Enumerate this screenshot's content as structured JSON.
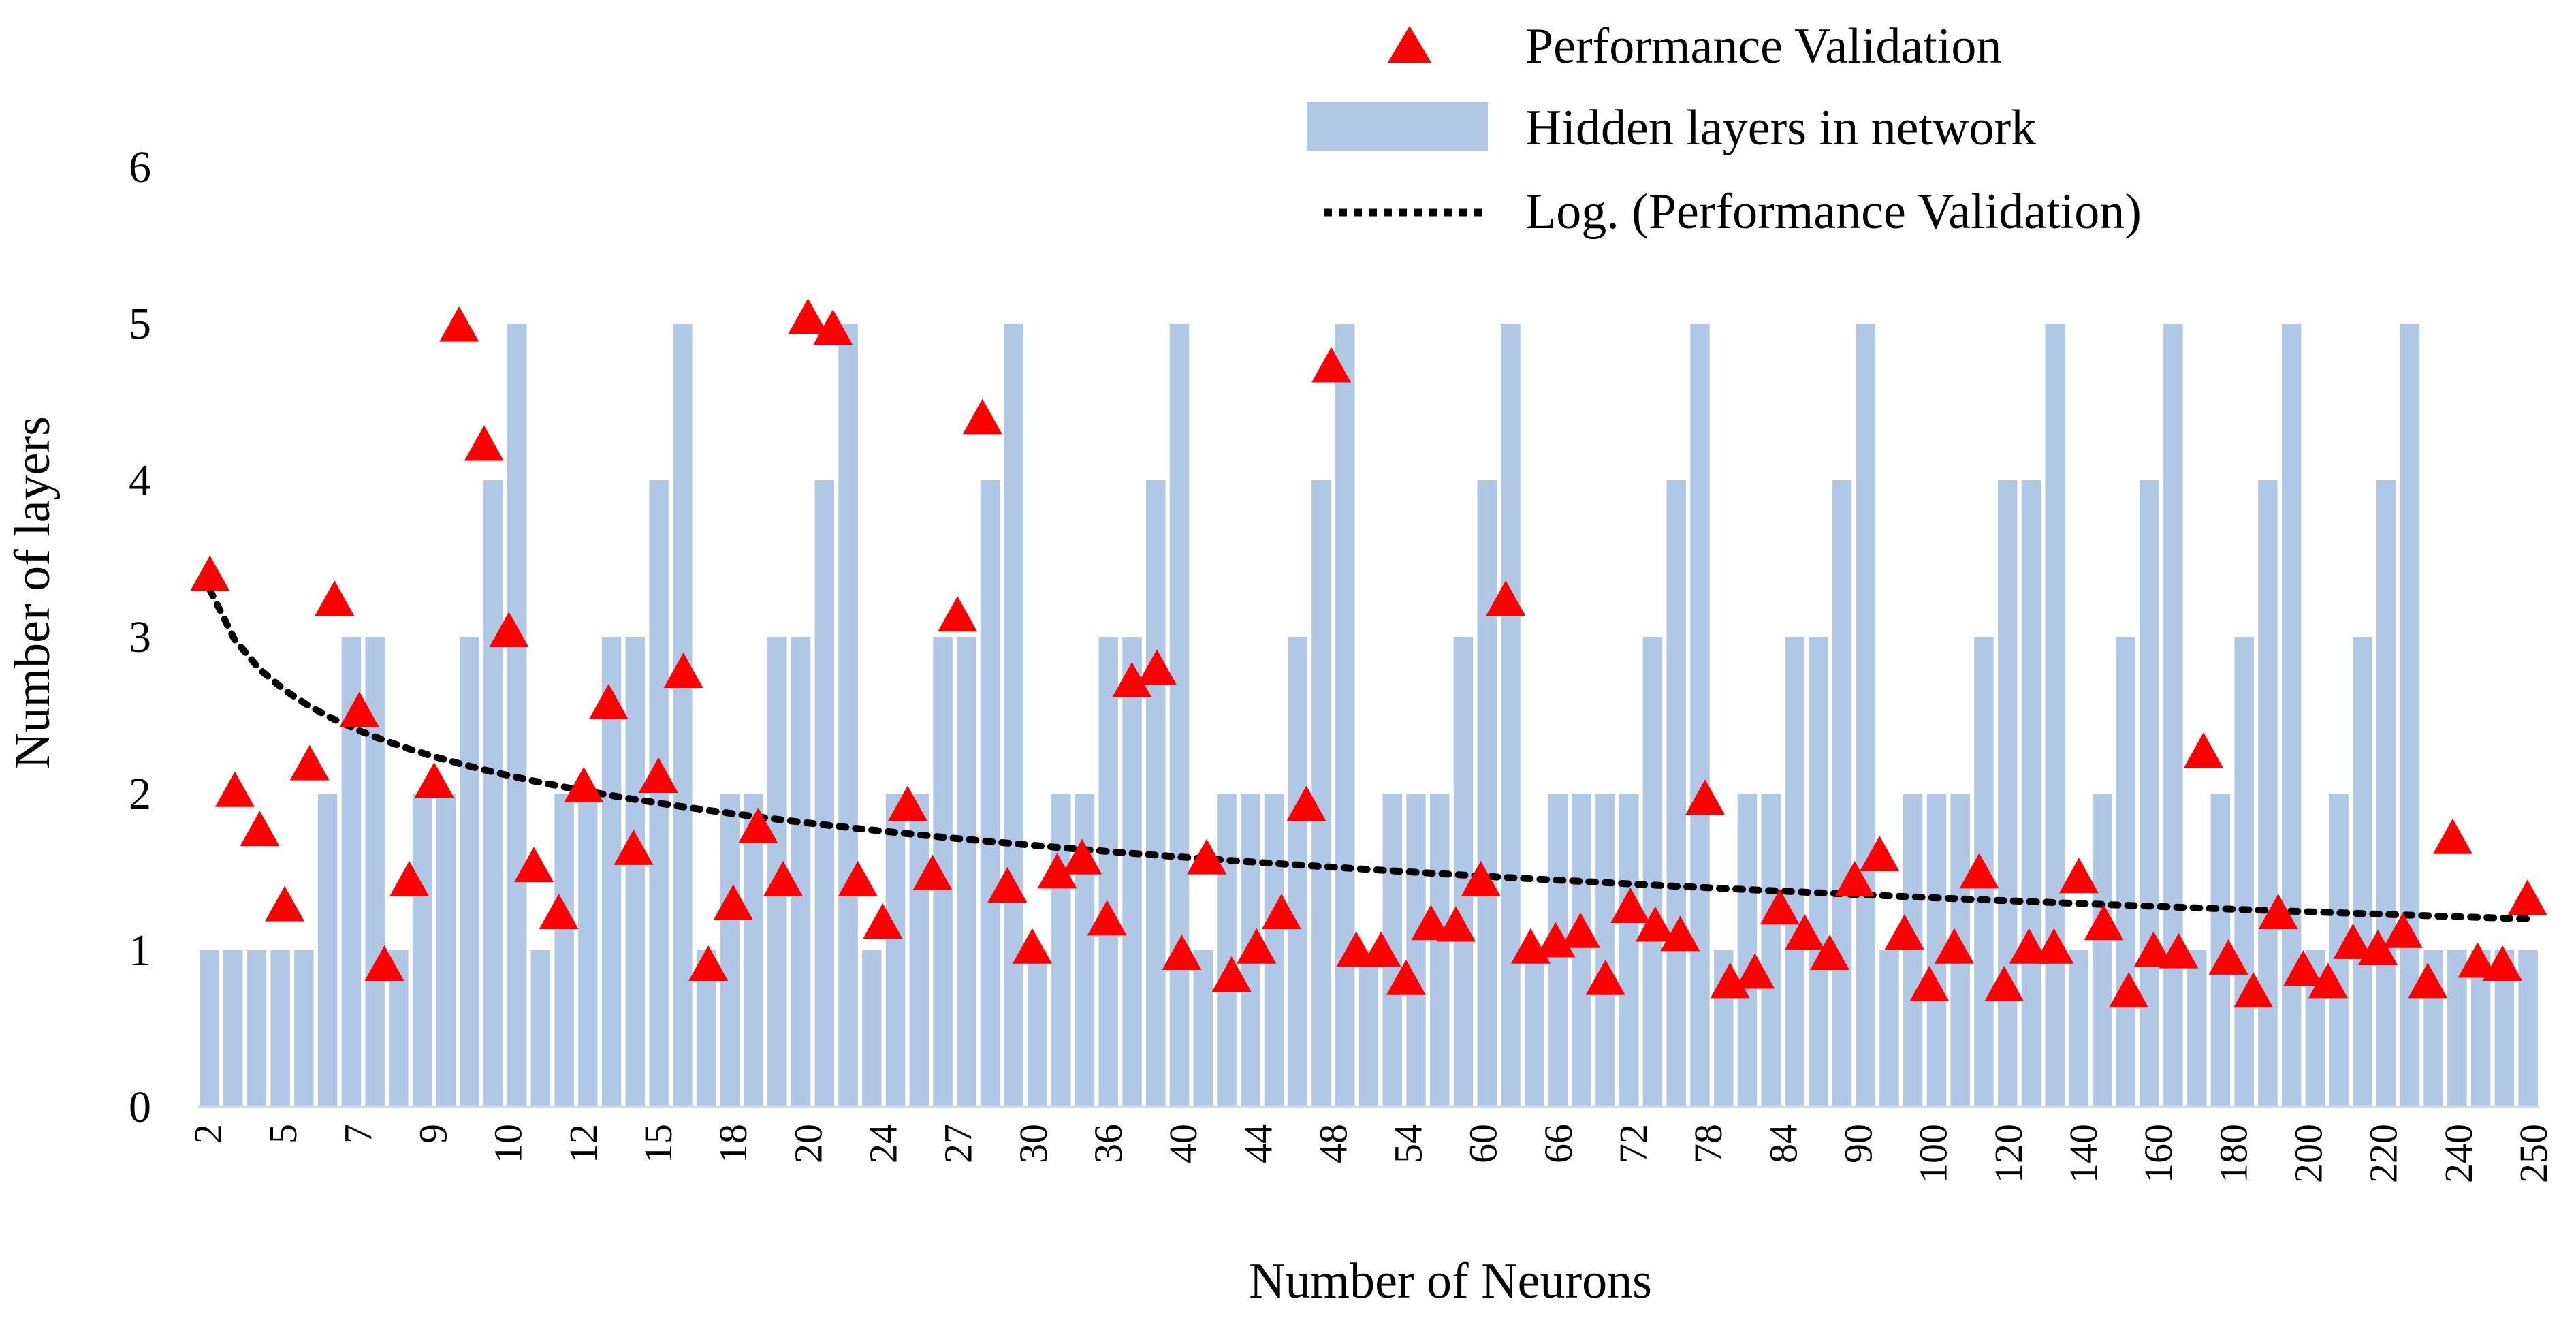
{
  "chart_data": {
    "type": "bar",
    "title": "",
    "xlabel": "Number of Neurons",
    "ylabel": "Number of layers",
    "ylim": [
      0,
      6
    ],
    "yticks": [
      0,
      1,
      2,
      3,
      4,
      5,
      6
    ],
    "grid": false,
    "legend_position": "top-right",
    "x_tick_labels": [
      "2",
      "5",
      "7",
      "9",
      "10",
      "12",
      "15",
      "18",
      "20",
      "24",
      "27",
      "30",
      "36",
      "40",
      "44",
      "48",
      "54",
      "60",
      "66",
      "72",
      "78",
      "84",
      "90",
      "100",
      "120",
      "140",
      "160",
      "180",
      "200",
      "220",
      "240",
      "250"
    ],
    "series": [
      {
        "name": "Hidden layers in network",
        "kind": "bar",
        "color": "#B0C7E6",
        "values": [
          1,
          1,
          1,
          1,
          1,
          2,
          3,
          3,
          1,
          2,
          2,
          3,
          4,
          5,
          1,
          2,
          2,
          3,
          3,
          4,
          5,
          1,
          2,
          2,
          3,
          3,
          4,
          5,
          1,
          2,
          2,
          3,
          3,
          4,
          5,
          1,
          2,
          2,
          3,
          3,
          4,
          5,
          1,
          2,
          2,
          2,
          3,
          4,
          5,
          1,
          2,
          2,
          2,
          3,
          4,
          5,
          1,
          2,
          2,
          2,
          2,
          3,
          4,
          5,
          1,
          2,
          2,
          3,
          3,
          4,
          5,
          1,
          2,
          2,
          2,
          3,
          4,
          4,
          5,
          1,
          2,
          3,
          4,
          5,
          1,
          2,
          3,
          4,
          5,
          1,
          2,
          3,
          4,
          5,
          1,
          1,
          1,
          1,
          1
        ]
      },
      {
        "name": "Performance Validation",
        "kind": "scatter",
        "marker": "triangle",
        "color": "#FF0000",
        "values": [
          3.38,
          2.0,
          1.75,
          1.27,
          2.17,
          3.22,
          2.51,
          0.89,
          1.43,
          2.06,
          4.97,
          4.21,
          3.02,
          1.52,
          1.22,
          2.03,
          2.56,
          1.63,
          2.09,
          2.76,
          0.89,
          1.28,
          1.77,
          1.43,
          5.02,
          4.95,
          1.43,
          1.16,
          1.91,
          1.47,
          3.12,
          4.38,
          1.39,
          1.0,
          1.48,
          1.57,
          1.18,
          2.7,
          2.78,
          0.96,
          1.57,
          0.82,
          1.0,
          1.22,
          1.91,
          4.71,
          0.98,
          0.98,
          0.8,
          1.15,
          1.14,
          1.43,
          3.22,
          1.0,
          1.04,
          1.1,
          0.8,
          1.26,
          1.14,
          1.08,
          1.95,
          0.78,
          0.84,
          1.25,
          1.09,
          0.96,
          1.43,
          1.59,
          1.09,
          0.76,
          1.0,
          1.48,
          0.76,
          1.0,
          1.0,
          1.45,
          1.15,
          0.72,
          0.98,
          0.97,
          2.25,
          0.93,
          0.72,
          1.22,
          0.86,
          0.78,
          1.03,
          0.99,
          1.1,
          0.78,
          1.7,
          0.91,
          0.89,
          1.31
        ]
      },
      {
        "name": "Log. (Performance Validation)",
        "kind": "trendline",
        "style": "dotted",
        "color": "#000000",
        "fit": "logarithmic",
        "start_value": 3.3,
        "end_value": 1.2
      }
    ]
  }
}
